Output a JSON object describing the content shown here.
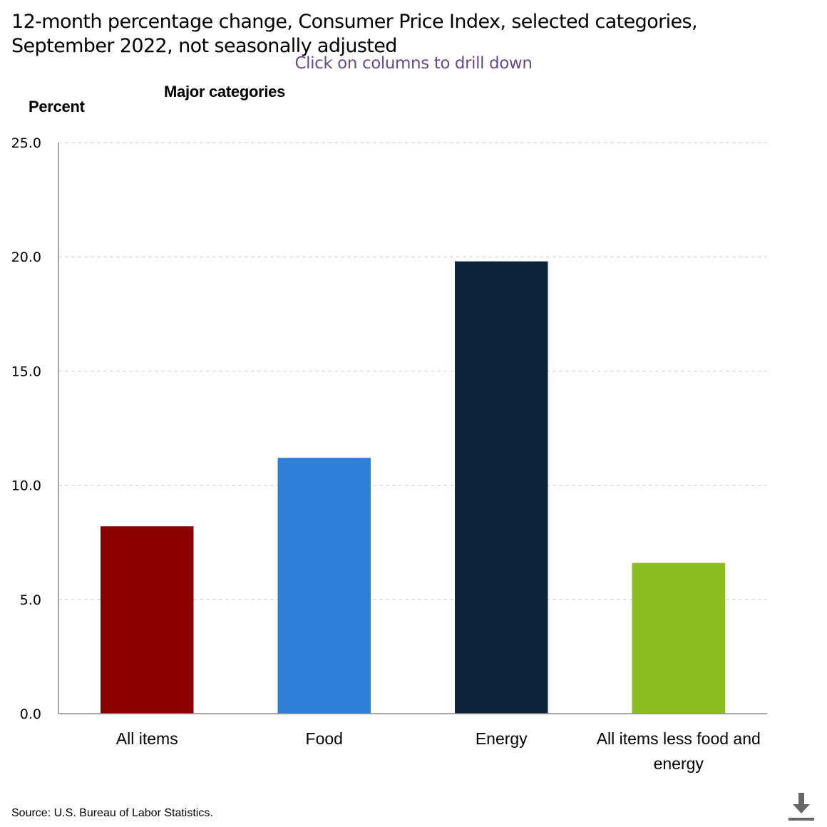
{
  "header": {
    "title_line1": "12-month percentage change, Consumer Price Index, selected categories,",
    "title_line2": "September 2022, not seasonally adjusted",
    "drill_hint": "Click on columns to drill down",
    "subtitle": "Major categories",
    "y_unit": "Percent"
  },
  "footer": {
    "source": "Source: U.S. Bureau of Labor Statistics.",
    "download_icon": "download-icon"
  },
  "chart_data": {
    "type": "bar",
    "title": "12-month percentage change, Consumer Price Index, selected categories, September 2022, not seasonally adjusted",
    "subtitle": "Major categories",
    "ylabel": "Percent",
    "xlabel": "",
    "categories": [
      "All items",
      "Food",
      "Energy",
      "All items less food and energy"
    ],
    "category_lines": [
      [
        "All items"
      ],
      [
        "Food"
      ],
      [
        "Energy"
      ],
      [
        "All items less food and",
        "energy"
      ]
    ],
    "values": [
      8.2,
      11.2,
      19.8,
      6.6
    ],
    "colors": [
      "#8b0000",
      "#2f7ed8",
      "#0d233a",
      "#8bbc21"
    ],
    "ylim": [
      0,
      25
    ],
    "yticks": [
      0,
      5,
      10,
      15,
      20,
      25
    ],
    "ytick_labels": [
      "0.0",
      "5.0",
      "10.0",
      "15.0",
      "20.0",
      "25.0"
    ],
    "grid": true,
    "legend": "none"
  }
}
